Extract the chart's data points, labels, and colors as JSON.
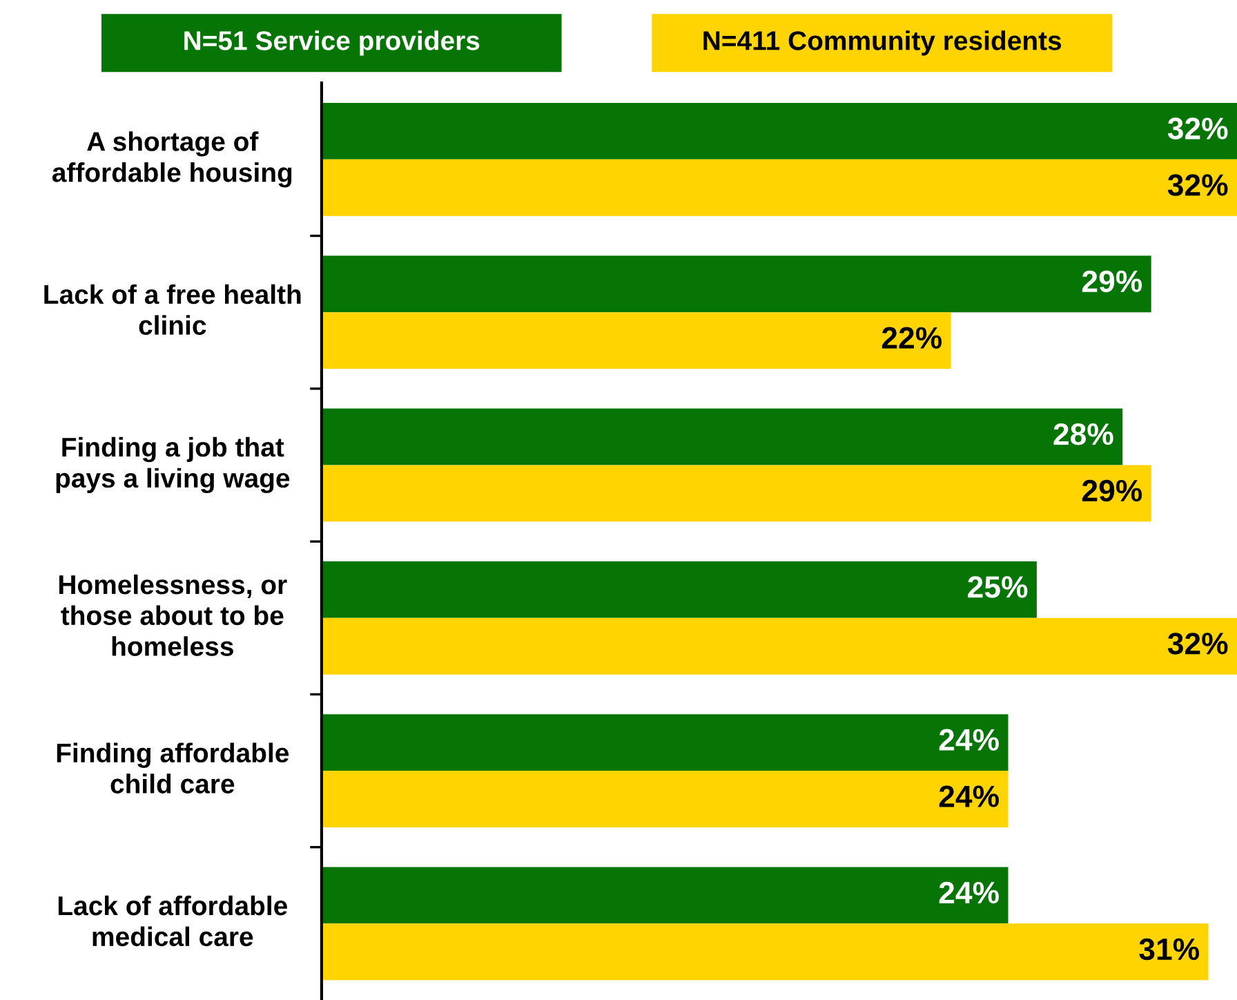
{
  "chart_data": {
    "type": "bar",
    "orientation": "horizontal",
    "legend": "top",
    "categories": [
      "A shortage of\naffordable housing",
      "Lack of a free health\nclinic",
      "Finding a job that\npays a living wage",
      "Homelessness, or\nthose about to be\nhomeless",
      "Finding affordable\nchild care",
      "Lack of affordable\nmedical care"
    ],
    "series": [
      {
        "name": "N=51 Service providers",
        "color": "#067506",
        "values": [
          32,
          29,
          28,
          25,
          24,
          24
        ],
        "value_labels": [
          "32%",
          "29%",
          "28%",
          "25%",
          "24%",
          "24%"
        ]
      },
      {
        "name": "N=411 Community residents",
        "color": "#ffd400",
        "values": [
          32,
          22,
          29,
          32,
          24,
          31
        ],
        "value_labels": [
          "32%",
          "22%",
          "29%",
          "32%",
          "24%",
          "31%"
        ]
      }
    ]
  }
}
